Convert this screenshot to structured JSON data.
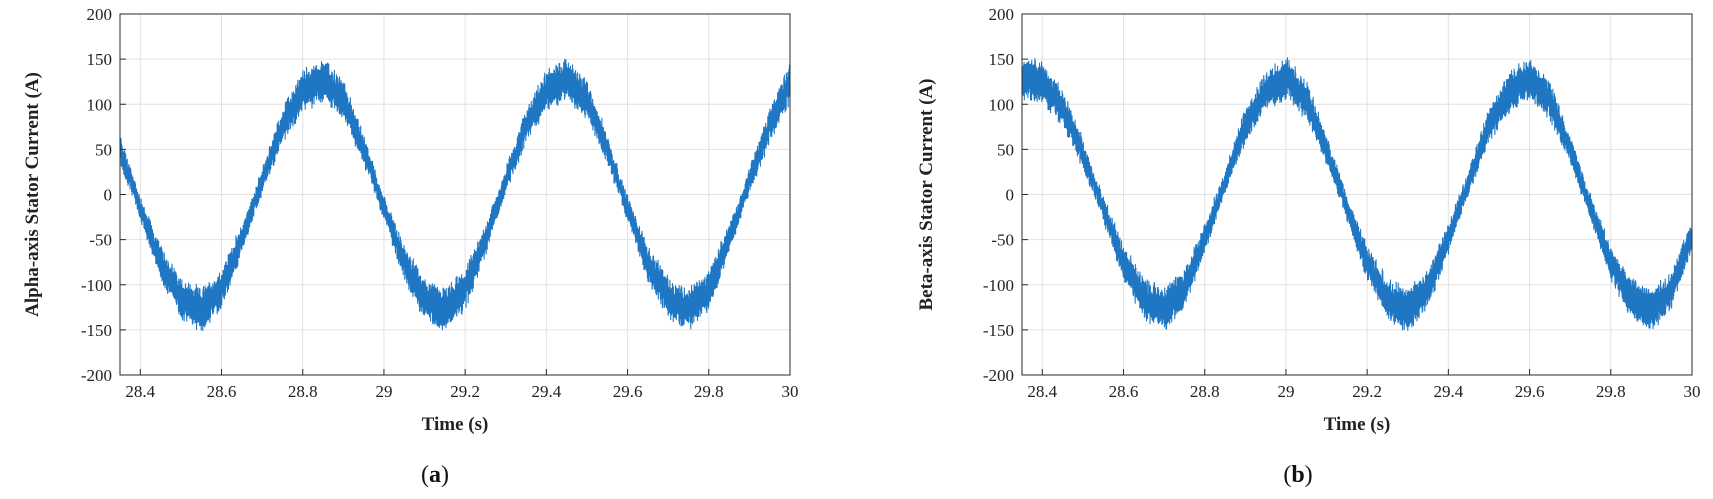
{
  "chart_data": [
    {
      "type": "line",
      "title": "",
      "xlabel": "Time (s)",
      "ylabel": "Alpha-axis Stator Current (A)",
      "xlim": [
        28.35,
        30.0
      ],
      "ylim": [
        -200,
        200
      ],
      "xticks": [
        28.4,
        28.6,
        28.8,
        29,
        29.2,
        29.4,
        29.6,
        29.8,
        30
      ],
      "xtick_labels": [
        "28.4",
        "28.6",
        "28.8",
        "29",
        "29.2",
        "29.4",
        "29.6",
        "29.8",
        "30"
      ],
      "yticks": [
        200,
        150,
        100,
        50,
        0,
        -50,
        -100,
        -150,
        -200
      ],
      "ytick_labels": [
        "200",
        "150",
        "100",
        "50",
        "0",
        "-50",
        "-100",
        "-150",
        "-200"
      ],
      "grid": true,
      "color": "#1f77c4",
      "caption_prefix": "(",
      "caption_letter": "a",
      "caption_suffix": ")",
      "series": [
        {
          "x": [
            28.35,
            28.4,
            28.45,
            28.5,
            28.55,
            28.6,
            28.65,
            28.7,
            28.75,
            28.8,
            28.85,
            28.9,
            28.95,
            29.0,
            29.05,
            29.1,
            29.15,
            29.2,
            29.25,
            29.3,
            29.35,
            29.4,
            29.45,
            29.5,
            29.55,
            29.6,
            29.65,
            29.7,
            29.75,
            29.8,
            29.85,
            29.9,
            29.95,
            30.0
          ],
          "y": [
            50,
            -15,
            -76,
            -115,
            -128,
            -105,
            -50,
            15,
            76,
            115,
            128,
            105,
            50,
            -15,
            -76,
            -115,
            -128,
            -105,
            -50,
            15,
            76,
            115,
            128,
            105,
            50,
            -15,
            -76,
            -115,
            -128,
            -105,
            -50,
            15,
            76,
            125
          ],
          "ripple_amplitude": 20,
          "peak_amplitude": 128,
          "frequency_hz": 1.67
        }
      ]
    },
    {
      "type": "line",
      "title": "",
      "xlabel": "Time (s)",
      "ylabel": "Beta-axis Stator Current (A)",
      "xlim": [
        28.35,
        30.0
      ],
      "ylim": [
        -200,
        200
      ],
      "xticks": [
        28.4,
        28.6,
        28.8,
        29,
        29.2,
        29.4,
        29.6,
        29.8,
        30
      ],
      "xtick_labels": [
        "28.4",
        "28.6",
        "28.8",
        "29",
        "29.2",
        "29.4",
        "29.6",
        "29.8",
        "30"
      ],
      "yticks": [
        200,
        150,
        100,
        50,
        0,
        -50,
        -100,
        -150,
        -200
      ],
      "ytick_labels": [
        "200",
        "150",
        "100",
        "50",
        "0",
        "-50",
        "-100",
        "-150",
        "-200"
      ],
      "grid": true,
      "color": "#1f77c4",
      "caption_prefix": "(",
      "caption_letter": "b",
      "caption_suffix": ")",
      "series": [
        {
          "x": [
            28.35,
            28.4,
            28.45,
            28.5,
            28.55,
            28.6,
            28.65,
            28.7,
            28.75,
            28.8,
            28.85,
            28.9,
            28.95,
            29.0,
            29.05,
            29.1,
            29.15,
            29.2,
            29.25,
            29.3,
            29.35,
            29.4,
            29.45,
            29.5,
            29.55,
            29.6,
            29.65,
            29.7,
            29.75,
            29.8,
            29.85,
            29.9,
            29.95,
            30.0
          ],
          "y": [
            128,
            124,
            96,
            45,
            -15,
            -76,
            -115,
            -128,
            -105,
            -50,
            15,
            76,
            115,
            128,
            105,
            50,
            -15,
            -76,
            -115,
            -128,
            -105,
            -50,
            15,
            76,
            115,
            128,
            105,
            50,
            -15,
            -76,
            -115,
            -128,
            -105,
            -45
          ],
          "ripple_amplitude": 20,
          "peak_amplitude": 128,
          "frequency_hz": 1.67
        }
      ]
    }
  ]
}
